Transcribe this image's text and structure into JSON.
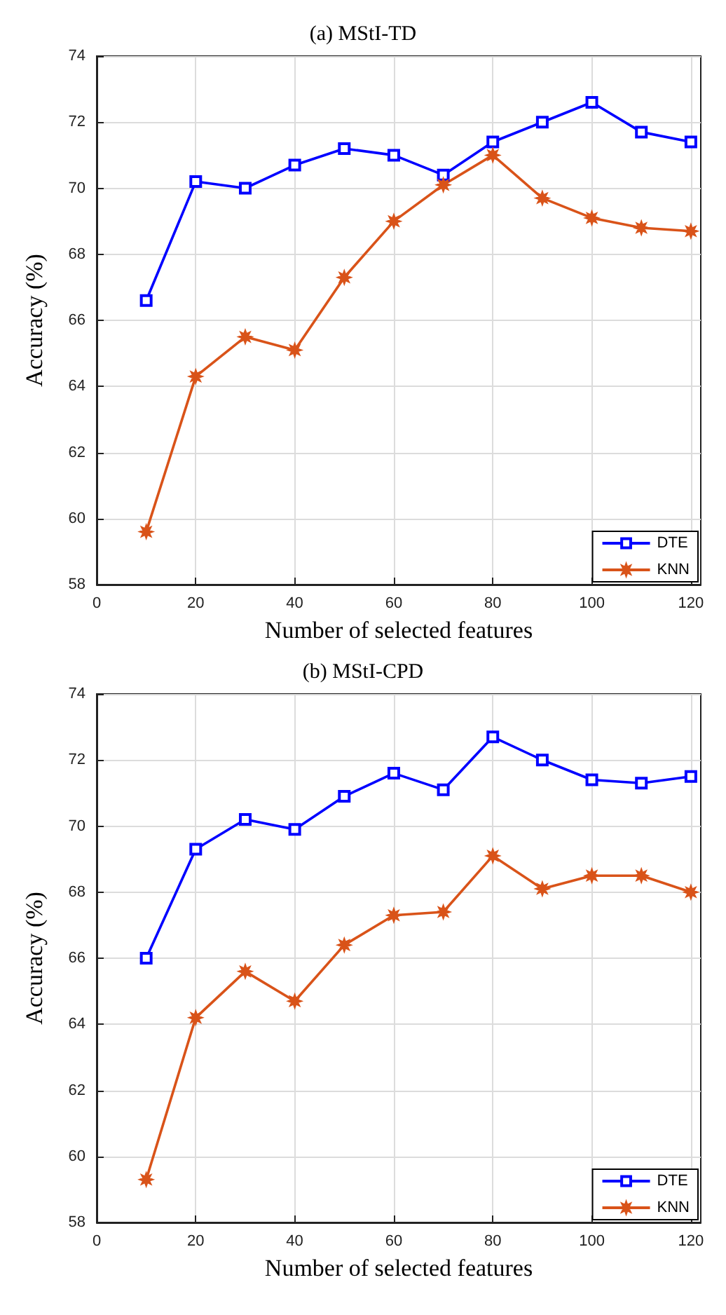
{
  "chart_data": [
    {
      "type": "line",
      "title": "(a) MStI-TD",
      "xlabel": "Number of selected features",
      "ylabel": "Accuracy (%)",
      "x": [
        10,
        20,
        30,
        40,
        50,
        60,
        70,
        80,
        90,
        100,
        110,
        120
      ],
      "xlim": [
        0,
        122
      ],
      "xticks": [
        0,
        20,
        40,
        60,
        80,
        100,
        120
      ],
      "ylim": [
        58,
        74
      ],
      "yticks": [
        58,
        60,
        62,
        64,
        66,
        68,
        70,
        72,
        74
      ],
      "grid": true,
      "legend": "bottom right",
      "series": [
        {
          "name": "DTE",
          "color": "#0000ff",
          "marker": "square",
          "values": [
            66.6,
            70.2,
            70.0,
            70.7,
            71.2,
            71.0,
            70.4,
            71.4,
            72.0,
            72.6,
            71.7,
            71.4
          ]
        },
        {
          "name": "KNN",
          "color": "#d95319",
          "marker": "star",
          "values": [
            59.6,
            64.3,
            65.5,
            65.1,
            67.3,
            69.0,
            70.1,
            71.0,
            69.7,
            69.1,
            68.8,
            68.7
          ]
        }
      ]
    },
    {
      "type": "line",
      "title": "(b) MStI-CPD",
      "xlabel": "Number of selected features",
      "ylabel": "Accuracy (%)",
      "x": [
        10,
        20,
        30,
        40,
        50,
        60,
        70,
        80,
        90,
        100,
        110,
        120
      ],
      "xlim": [
        0,
        122
      ],
      "xticks": [
        0,
        20,
        40,
        60,
        80,
        100,
        120
      ],
      "ylim": [
        58,
        74
      ],
      "yticks": [
        58,
        60,
        62,
        64,
        66,
        68,
        70,
        72,
        74
      ],
      "grid": true,
      "legend": "bottom right",
      "series": [
        {
          "name": "DTE",
          "color": "#0000ff",
          "marker": "square",
          "values": [
            66.0,
            69.3,
            70.2,
            69.9,
            70.9,
            71.6,
            71.1,
            72.7,
            72.0,
            71.4,
            71.3,
            71.5
          ]
        },
        {
          "name": "KNN",
          "color": "#d95319",
          "marker": "star",
          "values": [
            59.3,
            64.2,
            65.6,
            64.7,
            66.4,
            67.3,
            67.4,
            69.1,
            68.1,
            68.5,
            68.5,
            68.0
          ]
        }
      ]
    }
  ]
}
